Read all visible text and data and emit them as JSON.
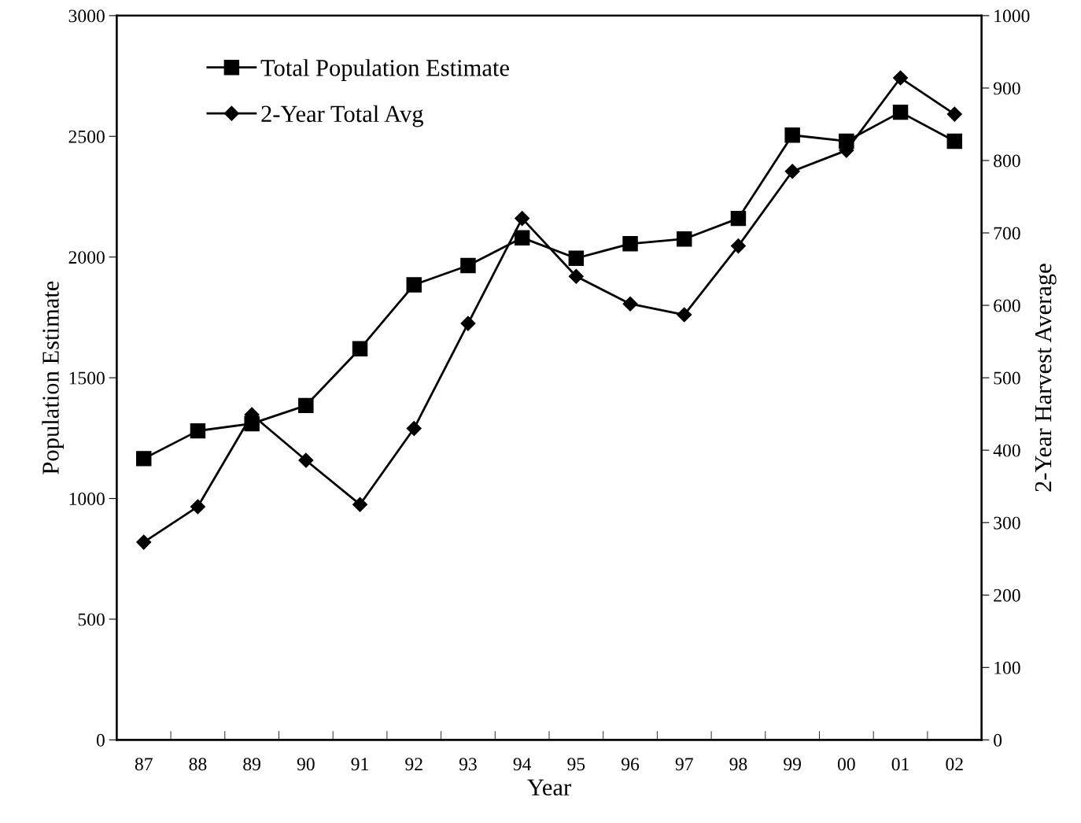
{
  "chart_data": {
    "type": "line",
    "xlabel": "Year",
    "ylabel": "Population Estimate",
    "y2label": "2-Year Harvest Average",
    "categories": [
      "87",
      "88",
      "89",
      "90",
      "91",
      "92",
      "93",
      "94",
      "95",
      "96",
      "97",
      "98",
      "99",
      "00",
      "01",
      "02"
    ],
    "series": [
      {
        "name": "Total Population Estimate",
        "color": "#000000",
        "marker": "square",
        "values": [
          1165,
          1280,
          1310,
          1385,
          1620,
          1885,
          1965,
          2080,
          1995,
          2055,
          2075,
          2160,
          2505,
          2480,
          2600,
          2480
        ]
      },
      {
        "name": "2-Year Total Avg",
        "color": "#000000",
        "marker": "diamond",
        "axis": "y2",
        "values": [
          273,
          322,
          449,
          386,
          325,
          430,
          575,
          720,
          640,
          602,
          587,
          682,
          785,
          814,
          914,
          864
        ]
      }
    ],
    "ylim": [
      0,
      3000
    ],
    "yticks": [
      0,
      500,
      1000,
      1500,
      2000,
      2500,
      3000
    ],
    "y2lim": [
      0,
      1000
    ],
    "y2ticks": [
      0,
      100,
      200,
      300,
      400,
      500,
      600,
      700,
      800,
      900,
      1000
    ],
    "grid": false,
    "legend": "top left",
    "line_style": "solid"
  }
}
